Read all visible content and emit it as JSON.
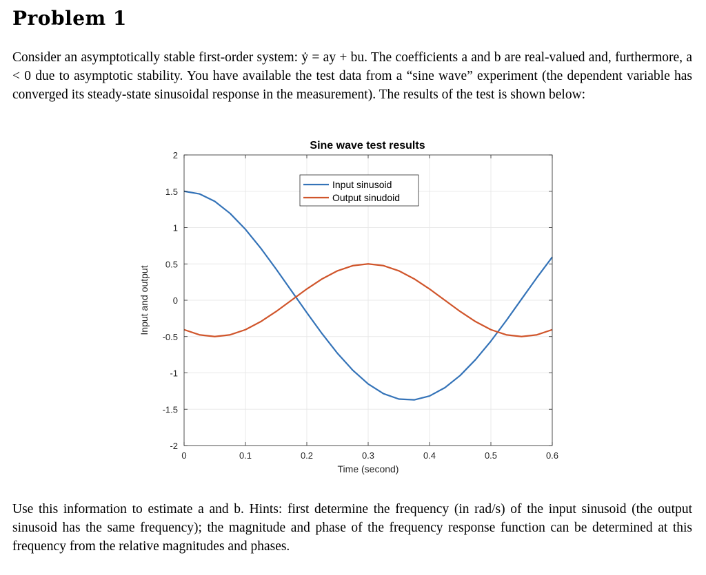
{
  "heading": "Problem 1",
  "intro_paragraph": "Consider an asymptotically stable first-order system: ẏ = ay + bu. The coefficients a and b are real-valued and, furthermore, a < 0 due to asymptotic stability. You have available the test data from a “sine wave” experiment (the dependent variable has converged its steady-state sinusoidal response in the measurement). The results of the test is shown below:",
  "outro_paragraph": "Use this information to estimate a and b. Hints: first determine the frequency (in rad/s) of the input sinusoid (the output sinusoid has the same frequency); the magnitude and phase of the frequency response function can be determined at this frequency from the relative magnitudes and phases.",
  "colors": {
    "input": "#3473b8",
    "output": "#d0552b",
    "grid": "#e8e8e8",
    "axis": "#262626"
  },
  "chart_data": {
    "type": "line",
    "title": "Sine wave test results",
    "xlabel": "Time (second)",
    "ylabel": "Input and output",
    "xlim": [
      0,
      0.6
    ],
    "ylim": [
      -2,
      2
    ],
    "xticks": [
      0,
      0.1,
      0.2,
      0.3,
      0.4,
      0.5,
      0.6
    ],
    "xtick_labels": [
      "0",
      "0.1",
      "0.2",
      "0.3",
      "0.4",
      "0.5",
      "0.6"
    ],
    "yticks": [
      2,
      1.5,
      1,
      0.5,
      0,
      -0.5,
      -1,
      -1.5,
      -2
    ],
    "ytick_labels": [
      "2",
      "1.5",
      "1",
      "0.5",
      "0",
      "-0.5",
      "-1",
      "-1.5",
      "-2"
    ],
    "grid": true,
    "legend_position": "top-center",
    "series": [
      {
        "name": "Input sinusoid",
        "x": [
          0,
          0.025,
          0.05,
          0.075,
          0.1,
          0.125,
          0.15,
          0.175,
          0.2,
          0.225,
          0.25,
          0.275,
          0.3,
          0.325,
          0.35,
          0.375,
          0.4,
          0.425,
          0.45,
          0.475,
          0.5,
          0.525,
          0.55,
          0.575,
          0.6
        ],
        "y": [
          1.5,
          1.464,
          1.361,
          1.195,
          0.976,
          0.716,
          0.429,
          0.129,
          -0.171,
          -0.462,
          -0.731,
          -0.964,
          -1.152,
          -1.286,
          -1.36,
          -1.371,
          -1.318,
          -1.204,
          -1.035,
          -0.817,
          -0.563,
          -0.281,
          0.016,
          0.312,
          0.594
        ]
      },
      {
        "name": "Output sinudoid",
        "x": [
          0,
          0.025,
          0.05,
          0.075,
          0.1,
          0.125,
          0.15,
          0.175,
          0.2,
          0.225,
          0.25,
          0.275,
          0.3,
          0.325,
          0.35,
          0.375,
          0.4,
          0.425,
          0.45,
          0.475,
          0.5,
          0.525,
          0.55,
          0.575,
          0.6
        ],
        "y": [
          -0.405,
          -0.476,
          -0.5,
          -0.476,
          -0.405,
          -0.294,
          -0.155,
          0.0,
          0.155,
          0.294,
          0.405,
          0.476,
          0.5,
          0.476,
          0.405,
          0.294,
          0.155,
          0.0,
          -0.155,
          -0.294,
          -0.405,
          -0.476,
          -0.5,
          -0.476,
          -0.405
        ]
      }
    ]
  }
}
